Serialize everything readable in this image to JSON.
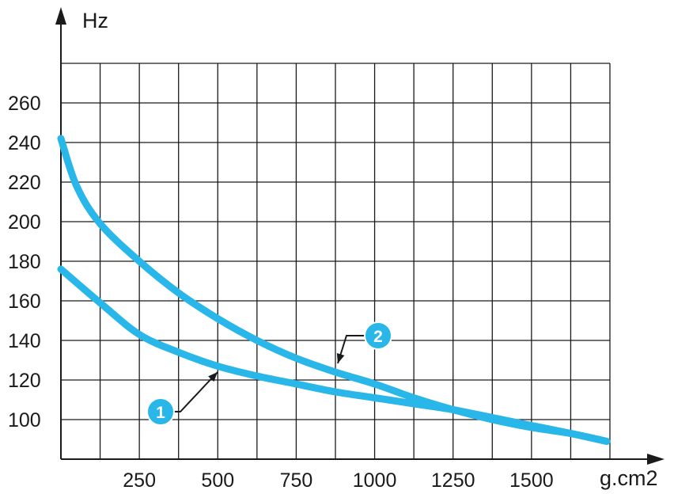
{
  "chart_data": {
    "type": "line",
    "title": "",
    "ylabel": "Hz",
    "xlabel": "g.cm2",
    "xlim": [
      0,
      1750
    ],
    "ylim": [
      80,
      280
    ],
    "x_grid_step": 125,
    "y_grid_step": 20,
    "grid": true,
    "x_ticks": [
      250,
      500,
      750,
      1000,
      1250,
      1500
    ],
    "x_tick_labels": [
      "250",
      "500",
      "750",
      "1000",
      "1250",
      "1500"
    ],
    "y_ticks": [
      100,
      120,
      140,
      160,
      180,
      200,
      220,
      240,
      260
    ],
    "y_tick_labels": [
      "100",
      "120",
      "140",
      "160",
      "180",
      "200",
      "220",
      "240",
      "260"
    ],
    "series_color": "#29b6e8",
    "axis_color": "#1a1a1a",
    "series": [
      {
        "name": "1",
        "x": [
          0,
          125,
          250,
          375,
          500,
          625,
          750,
          875,
          1000,
          1125,
          1250,
          1375,
          1500,
          1625,
          1740
        ],
        "y": [
          176,
          159,
          143,
          134,
          127,
          122,
          118,
          114,
          111,
          108,
          105,
          101,
          97,
          93,
          89
        ]
      },
      {
        "name": "2",
        "x": [
          0,
          50,
          125,
          250,
          375,
          500,
          625,
          750,
          875,
          1000,
          1125,
          1250,
          1375,
          1500,
          1625,
          1740
        ],
        "y": [
          242,
          218,
          199,
          180,
          164,
          151,
          140,
          131,
          124,
          118,
          111,
          105,
          100,
          96,
          93,
          89
        ]
      }
    ],
    "annotations": [
      {
        "label": "1",
        "series": "1",
        "x": 490,
        "y": 127
      },
      {
        "label": "2",
        "series": "2",
        "x": 875,
        "y": 124
      }
    ]
  }
}
